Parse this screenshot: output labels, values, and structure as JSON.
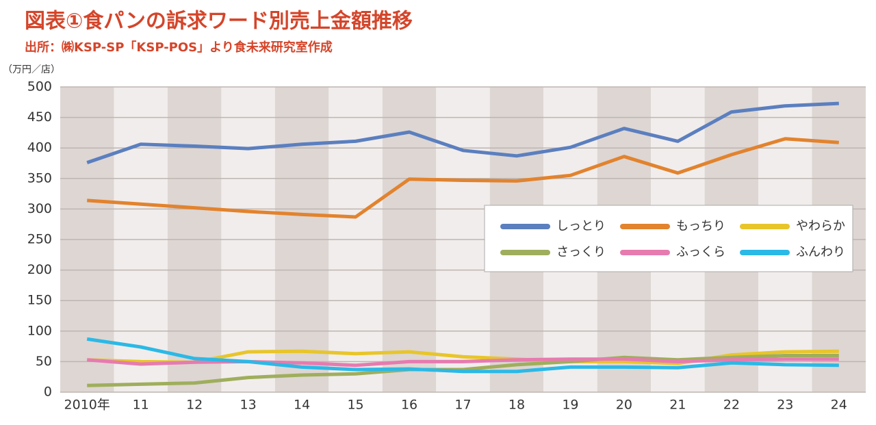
{
  "chart_data": {
    "type": "line",
    "title": "図表①食パンの訴求ワード別売上金額推移",
    "subtitle": "出所：㈱KSP-SP「KSP-POS」より食未来研究室作成",
    "y_label": "（万円／店）",
    "categories": [
      "2010年",
      "11",
      "12",
      "13",
      "14",
      "15",
      "16",
      "17",
      "18",
      "19",
      "20",
      "21",
      "22",
      "23",
      "24"
    ],
    "series": [
      {
        "name": "しっとり",
        "color": "#5b7fbf",
        "values": [
          376,
          406,
          403,
          399,
          406,
          411,
          426,
          396,
          387,
          401,
          432,
          411,
          459,
          469,
          473
        ]
      },
      {
        "name": "もっちり",
        "color": "#e2832e",
        "values": [
          314,
          308,
          302,
          296,
          291,
          287,
          349,
          347,
          346,
          355,
          386,
          359,
          389,
          415,
          409
        ]
      },
      {
        "name": "やわらか",
        "color": "#e8c52a",
        "values": [
          53,
          50,
          49,
          66,
          67,
          63,
          66,
          58,
          54,
          50,
          50,
          47,
          61,
          66,
          67
        ]
      },
      {
        "name": "さっくり",
        "color": "#9fae5c",
        "values": [
          11,
          13,
          15,
          24,
          28,
          30,
          37,
          37,
          45,
          50,
          57,
          53,
          57,
          60,
          60
        ]
      },
      {
        "name": "ふっくら",
        "color": "#e67bb0",
        "values": [
          53,
          46,
          49,
          50,
          48,
          44,
          50,
          50,
          53,
          54,
          54,
          50,
          53,
          54,
          54
        ]
      },
      {
        "name": "ふんわり",
        "color": "#2bb9e6",
        "values": [
          87,
          74,
          55,
          50,
          41,
          37,
          38,
          34,
          34,
          41,
          41,
          40,
          48,
          45,
          44
        ]
      }
    ],
    "ylim": [
      0,
      500
    ],
    "yticks": [
      0,
      50,
      100,
      150,
      200,
      250,
      300,
      350,
      400,
      450,
      500
    ],
    "grid": true
  }
}
